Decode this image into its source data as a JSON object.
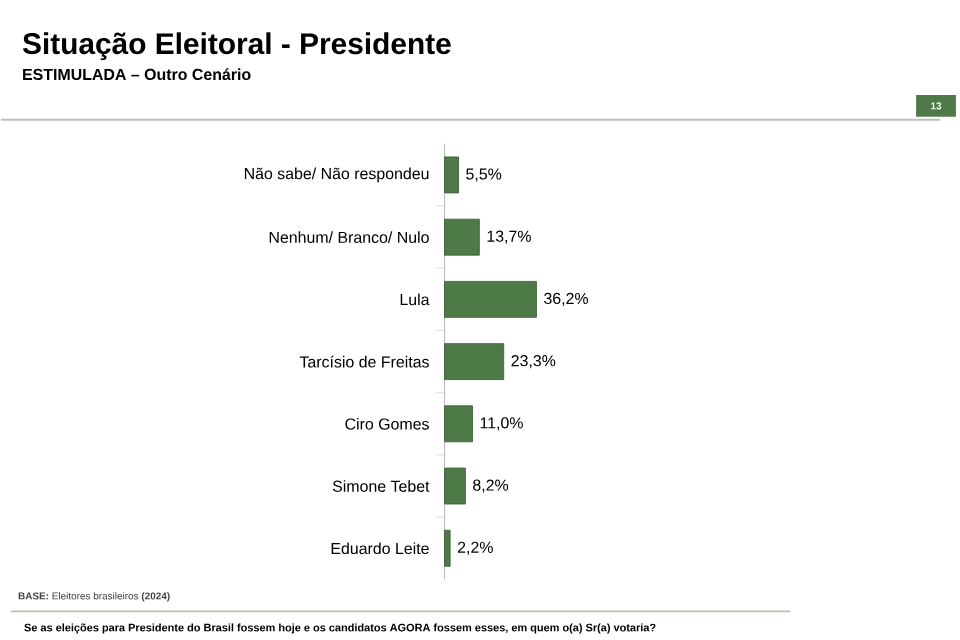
{
  "chart_data": {
    "type": "bar",
    "orientation": "horizontal",
    "title": "Situação Eleitoral - Presidente",
    "subtitle": "ESTIMULADA – Outro Cenário",
    "categories": [
      "Não sabe/ Não respondeu",
      "Nenhum/ Branco/ Nulo",
      "Lula",
      "Tarcísio de Freitas",
      "Ciro Gomes",
      "Simone Tebet",
      "Eduardo Leite"
    ],
    "values": [
      5.5,
      13.7,
      36.2,
      23.3,
      11.0,
      8.2,
      2.2
    ],
    "value_labels": [
      "5,5%",
      "13,7%",
      "36,2%",
      "23,3%",
      "11,0%",
      "8,2%",
      "2,2%"
    ],
    "color": "#4e7a48",
    "annotations": [
      "13",
      "**BASE:** Eleitores brasileiros **(2024)**",
      "Se as eleições para Presidente do Brasil fossem hoje e os candidatos AGORA fossem esses, em quem o(a) Sr(a) votaria?"
    ]
  }
}
